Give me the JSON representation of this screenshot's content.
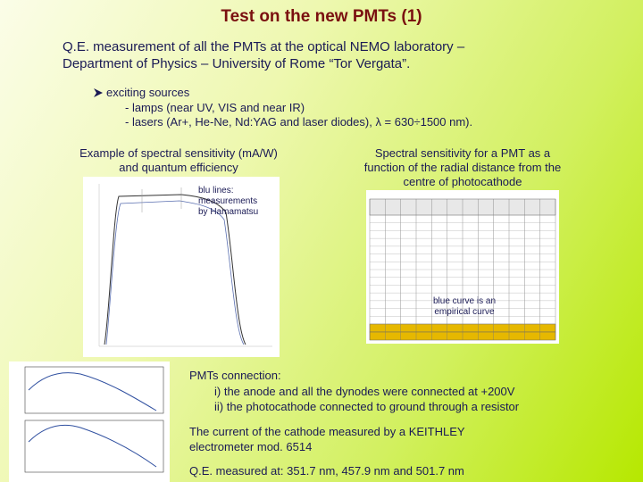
{
  "title": "Test on the new PMTs (1)",
  "intro": {
    "lines": [
      "Q.E. measurement of all the PMTs at the optical NEMO laboratory –",
      "Department of Physics – University of Rome “Tor Vergata”."
    ]
  },
  "sources": {
    "heading": "exciting sources",
    "items": [
      "- lamps (near UV, VIS and near IR)",
      "- lasers (Ar+, He-Ne, Nd:YAG and laser diodes), λ = 630÷1500 nm)."
    ]
  },
  "figures": {
    "left": {
      "caption": [
        "Example of spectral sensitivity (mA/W)",
        "and quantum efficiency"
      ],
      "note": [
        "blu lines:",
        "measurements",
        "by Hamamatsu"
      ]
    },
    "right": {
      "caption": [
        "Spectral sensitivity for a PMT as a",
        "function of the radial distance from the",
        "centre of photocathode"
      ],
      "note": [
        "blue curve is an",
        "empirical curve"
      ]
    }
  },
  "connection": {
    "heading": "PMTs connection:",
    "items": [
      "i) the anode and all the dynodes were connected at +200V",
      "ii) the photocathode connected to ground through a resistor"
    ]
  },
  "measurement": [
    "The current of the cathode measured by a KEITHLEY",
    "electrometer mod. 6514"
  ],
  "wavelengths": "Q.E. measured at:  351.7 nm, 457.9 nm and 501.7 nm"
}
